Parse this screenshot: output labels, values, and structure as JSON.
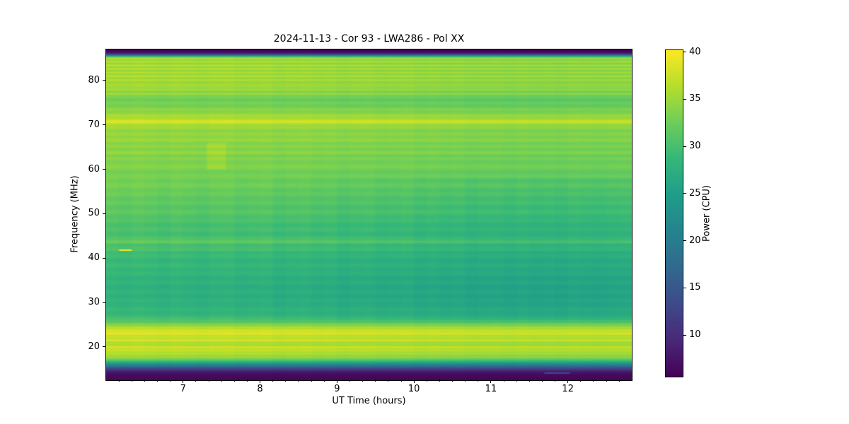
{
  "title": "2024-11-13 - Cor 93 - LWA286 - Pol XX",
  "x_axis": {
    "label": "UT Time (hours)",
    "ticks": [
      7,
      8,
      9,
      10,
      11,
      12
    ],
    "minor_tick_step_hours": 0.166667
  },
  "y_axis": {
    "label": "Frequency (MHz)",
    "ticks": [
      20,
      30,
      40,
      50,
      60,
      70,
      80
    ]
  },
  "colorbar": {
    "label": "Power (CPU)",
    "ticks": [
      10,
      15,
      20,
      25,
      30,
      35,
      40
    ]
  },
  "chart_data": {
    "type": "heatmap",
    "title": "2024-11-13 - Cor 93 - LWA286 - Pol XX",
    "xlabel": "UT Time (hours)",
    "ylabel": "Frequency (MHz)",
    "value_label": "Power (CPU)",
    "colormap": "viridis",
    "x_range_hours": [
      6.0,
      12.83
    ],
    "y_range_mhz": [
      12.5,
      87.0
    ],
    "value_range": [
      5.6,
      40.2
    ],
    "frequency_power_profile": [
      [
        87.0,
        6.0
      ],
      [
        86.5,
        6.3
      ],
      [
        86.1,
        9.0
      ],
      [
        85.8,
        16.0
      ],
      [
        85.5,
        26.0
      ],
      [
        85.2,
        34.0
      ],
      [
        84.9,
        36.2
      ],
      [
        84.6,
        34.5
      ],
      [
        84.2,
        36.3
      ],
      [
        83.8,
        34.2
      ],
      [
        83.4,
        36.5
      ],
      [
        83.0,
        34.5
      ],
      [
        82.6,
        36.4
      ],
      [
        82.2,
        34.2
      ],
      [
        81.8,
        36.2
      ],
      [
        81.4,
        34.5
      ],
      [
        81.0,
        36.5
      ],
      [
        80.5,
        34.5
      ],
      [
        80.0,
        36.2
      ],
      [
        79.5,
        34.0
      ],
      [
        79.0,
        36.0
      ],
      [
        78.5,
        34.5
      ],
      [
        78.0,
        35.6
      ],
      [
        77.5,
        33.6
      ],
      [
        77.0,
        35.0
      ],
      [
        76.5,
        33.2
      ],
      [
        76.0,
        32.6
      ],
      [
        75.0,
        32.6
      ],
      [
        74.0,
        33.2
      ],
      [
        73.0,
        34.2
      ],
      [
        72.0,
        35.2
      ],
      [
        71.3,
        36.6
      ],
      [
        70.8,
        38.0
      ],
      [
        70.3,
        37.0
      ],
      [
        69.8,
        35.2
      ],
      [
        69.0,
        34.6
      ],
      [
        68.0,
        34.2
      ],
      [
        67.0,
        34.6
      ],
      [
        66.0,
        34.1
      ],
      [
        65.0,
        33.7
      ],
      [
        64.0,
        34.1
      ],
      [
        63.0,
        33.6
      ],
      [
        62.0,
        33.2
      ],
      [
        61.0,
        33.6
      ],
      [
        60.0,
        33.1
      ],
      [
        59.0,
        32.7
      ],
      [
        58.0,
        32.7
      ],
      [
        57.0,
        32.2
      ],
      [
        56.0,
        32.6
      ],
      [
        55.0,
        31.7
      ],
      [
        54.0,
        31.7
      ],
      [
        53.0,
        31.2
      ],
      [
        52.0,
        31.2
      ],
      [
        51.0,
        30.7
      ],
      [
        50.0,
        31.1
      ],
      [
        49.0,
        30.2
      ],
      [
        48.0,
        30.1
      ],
      [
        47.0,
        29.7
      ],
      [
        46.0,
        29.7
      ],
      [
        45.0,
        29.6
      ],
      [
        44.2,
        30.1
      ],
      [
        43.6,
        32.6
      ],
      [
        43.2,
        30.1
      ],
      [
        42.8,
        29.1
      ],
      [
        42.2,
        29.6
      ],
      [
        41.8,
        30.6
      ],
      [
        41.4,
        29.1
      ],
      [
        41.0,
        28.7
      ],
      [
        40.0,
        28.7
      ],
      [
        39.0,
        28.2
      ],
      [
        38.0,
        28.6
      ],
      [
        37.0,
        28.2
      ],
      [
        36.0,
        27.9
      ],
      [
        35.0,
        27.6
      ],
      [
        34.0,
        27.6
      ],
      [
        33.0,
        27.3
      ],
      [
        32.0,
        27.6
      ],
      [
        31.0,
        27.3
      ],
      [
        30.0,
        27.6
      ],
      [
        29.0,
        27.9
      ],
      [
        28.0,
        28.1
      ],
      [
        27.0,
        28.6
      ],
      [
        26.5,
        29.1
      ],
      [
        26.0,
        30.1
      ],
      [
        25.5,
        31.6
      ],
      [
        25.0,
        33.6
      ],
      [
        24.5,
        35.6
      ],
      [
        24.0,
        37.1
      ],
      [
        23.5,
        38.1
      ],
      [
        23.0,
        38.6
      ],
      [
        22.5,
        37.1
      ],
      [
        22.0,
        36.6
      ],
      [
        21.5,
        38.1
      ],
      [
        21.0,
        36.1
      ],
      [
        20.5,
        35.6
      ],
      [
        20.0,
        37.6
      ],
      [
        19.5,
        37.1
      ],
      [
        19.0,
        36.6
      ],
      [
        18.5,
        36.1
      ],
      [
        18.0,
        35.1
      ],
      [
        17.5,
        34.1
      ],
      [
        17.0,
        31.1
      ],
      [
        16.5,
        26.6
      ],
      [
        16.0,
        21.6
      ],
      [
        15.5,
        16.6
      ],
      [
        15.0,
        12.1
      ],
      [
        14.5,
        8.6
      ],
      [
        14.0,
        7.0
      ],
      [
        13.5,
        6.5
      ],
      [
        12.5,
        6.0
      ]
    ],
    "ripple_bands": [
      {
        "fmin": 76.0,
        "fmax": 85.0,
        "amp": 0.4,
        "period": 0.8
      },
      {
        "fmin": 62.0,
        "fmax": 76.0,
        "amp": 0.6,
        "period": 1.4
      },
      {
        "fmin": 26.0,
        "fmax": 62.0,
        "amp": 0.45,
        "period": 2.0
      },
      {
        "fmin": 17.5,
        "fmax": 26.0,
        "amp": 0.5,
        "period": 0.75
      }
    ],
    "time_trend": [
      [
        6.0,
        0.35
      ],
      [
        7.0,
        0.2
      ],
      [
        8.0,
        -0.1
      ],
      [
        9.0,
        -0.55
      ],
      [
        10.0,
        -1.05
      ],
      [
        10.8,
        -1.5
      ],
      [
        11.6,
        -1.75
      ],
      [
        12.3,
        -1.55
      ],
      [
        12.83,
        -1.65
      ]
    ],
    "time_block_minutes": 10,
    "time_block_deltas": [
      0.35,
      0.1,
      0.45,
      0.2,
      -0.15,
      0.3,
      0.05,
      -0.2,
      0.25,
      0.4,
      -0.1,
      0.15,
      0.35,
      -0.25,
      0.1,
      0.3,
      -0.05,
      0.2,
      -0.3,
      0.1,
      0.25,
      -0.15,
      0.05,
      0.3,
      -0.2,
      0.15,
      -0.1,
      0.2,
      -0.25,
      0.05,
      0.15,
      -0.15,
      0.25,
      -0.05,
      0.1,
      -0.2,
      0.2,
      0.0,
      -0.15,
      0.1,
      0.25
    ],
    "band_sensitivity": [
      {
        "fmin": 12.5,
        "fmax": 15.3,
        "factor": 0.1
      },
      {
        "fmin": 15.3,
        "fmax": 26.0,
        "factor": 0.5
      },
      {
        "fmin": 26.0,
        "fmax": 58.0,
        "factor": 1.0
      },
      {
        "fmin": 58.0,
        "fmax": 85.5,
        "factor": 0.55
      },
      {
        "fmin": 85.5,
        "fmax": 87.0,
        "factor": 0.1
      }
    ],
    "features": [
      {
        "name": "bright-yellow-dash",
        "t0": 6.17,
        "t1": 6.33,
        "f0": 41.7,
        "f1": 42.0,
        "power": 40.0
      },
      {
        "name": "faint-blue-streak",
        "t0": 11.7,
        "t1": 12.02,
        "f0": 14.0,
        "f1": 14.25,
        "power": 13.5
      },
      {
        "name": "bright-patch",
        "t0": 7.3,
        "t1": 7.55,
        "f0": 60.0,
        "f1": 66.0,
        "delta": 1.3
      }
    ],
    "viridis_stops": [
      [
        0.0,
        "#440154"
      ],
      [
        0.11,
        "#482878"
      ],
      [
        0.22,
        "#3e4989"
      ],
      [
        0.33,
        "#31688e"
      ],
      [
        0.44,
        "#26828e"
      ],
      [
        0.56,
        "#1f9e89"
      ],
      [
        0.67,
        "#35b779"
      ],
      [
        0.78,
        "#6ece58"
      ],
      [
        0.89,
        "#b5de2b"
      ],
      [
        1.0,
        "#fde725"
      ]
    ]
  }
}
